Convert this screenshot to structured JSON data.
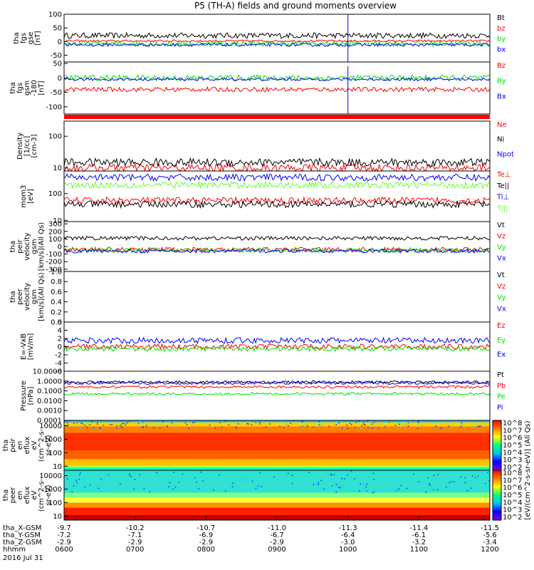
{
  "title": "P5 (TH-A) fields and ground moments overview",
  "colors": {
    "black": "#000000",
    "red": "#ff0000",
    "green": "#00e000",
    "blue": "#0000ff",
    "lightgreen": "#66ff33"
  },
  "panels": [
    {
      "id": "fgs-gse",
      "ylabel": [
        "tha",
        "fgs",
        "gse",
        "[nT]"
      ],
      "ticks": [
        "100",
        "50",
        "0",
        "-50"
      ],
      "tickvals": [
        100,
        50,
        0,
        -50
      ],
      "ylim": [
        -75,
        100
      ],
      "series": [
        {
          "name": "Bt",
          "color": "#000000",
          "base": 22,
          "amp": 10
        },
        {
          "name": "bz",
          "color": "#ff0000",
          "base": 2,
          "amp": 4
        },
        {
          "name": "by",
          "color": "#00e000",
          "base": -8,
          "amp": 10
        },
        {
          "name": "bx",
          "color": "#0000ff",
          "base": -12,
          "amp": 6
        }
      ],
      "spike": {
        "x": 10.9,
        "values": [
          100,
          -75
        ]
      }
    },
    {
      "id": "fgs-gsm",
      "ylabel": [
        "tha",
        "fgs",
        "gsm",
        "-180",
        "[nT]"
      ],
      "ticks": [
        "50",
        "0",
        "-50",
        "-100"
      ],
      "tickvals": [
        50,
        0,
        -50,
        -100
      ],
      "ylim": [
        -125,
        55
      ],
      "series": [
        {
          "name": "Bz",
          "color": "#ff0000",
          "base": -40,
          "amp": 8
        },
        {
          "name": "By",
          "color": "#00e000",
          "base": 0,
          "amp": 10
        },
        {
          "name": "Bx",
          "color": "#0000ff",
          "base": -5,
          "amp": 5
        }
      ],
      "spike": {
        "x": 10.9,
        "values": [
          40,
          -125
        ]
      }
    },
    {
      "id": "density",
      "ylabel": [
        "Density",
        "[1/cc]",
        "[cm-3]"
      ],
      "ticks": [
        "100",
        "10"
      ],
      "tickvals": [
        100,
        10
      ],
      "ylim": [
        8,
        300
      ],
      "log": true,
      "series": [
        {
          "name": "Ne",
          "color": "#ff0000",
          "base": 10,
          "amp": 1
        },
        {
          "name": "Ni",
          "color": "#000000",
          "base": 15,
          "amp": 4
        },
        {
          "name": "Npot",
          "color": "#0000ff",
          "base": 300,
          "amp": 0
        }
      ]
    },
    {
      "id": "temps",
      "ylabel": [
        "mom3",
        "[eV]"
      ],
      "ticks": [
        "100",
        "10"
      ],
      "tickvals": [
        100,
        10
      ],
      "ylim": [
        9,
        700
      ],
      "log": true,
      "series": [
        {
          "name": "Te⊥",
          "color": "#ff0000",
          "base": 55,
          "amp": 6
        },
        {
          "name": "Te||",
          "color": "#000000",
          "base": 40,
          "amp": 5
        },
        {
          "name": "Ti⊥",
          "color": "#0000ff",
          "base": 400,
          "amp": 60
        },
        {
          "name": "Ti||",
          "color": "#66ff33",
          "base": 210,
          "amp": 50
        }
      ]
    },
    {
      "id": "peir-vel",
      "ylabel": [
        "tha",
        "peir",
        "velocity",
        "gsm",
        "[km/s](All Qs)"
      ],
      "ticks": [
        "300",
        "200",
        "100",
        "0",
        "-100",
        "-200",
        "-300"
      ],
      "tickvals": [
        300,
        200,
        100,
        0,
        -100,
        -200,
        -300
      ],
      "ylim": [
        -330,
        330
      ],
      "series": [
        {
          "name": "Vt",
          "color": "#000000",
          "base": 110,
          "amp": 25
        },
        {
          "name": "Vz",
          "color": "#ff0000",
          "base": -40,
          "amp": 30
        },
        {
          "name": "Vy",
          "color": "#00e000",
          "base": -50,
          "amp": 30
        },
        {
          "name": "Vx",
          "color": "#0000ff",
          "base": -60,
          "amp": 25
        }
      ]
    },
    {
      "id": "peer-vel",
      "ylabel": [
        "tha",
        "peer",
        "velocity",
        "gsm",
        "[km/s](All Qs)"
      ],
      "ticks": [
        "1.0",
        "0.8",
        "0.6",
        "0.4",
        "0.2",
        "0.0"
      ],
      "tickvals": [
        1.0,
        0.8,
        0.6,
        0.4,
        0.2,
        0.0
      ],
      "ylim": [
        0,
        1
      ],
      "series": [
        {
          "name": "Vt",
          "color": "#000000"
        },
        {
          "name": "Vz",
          "color": "#ff0000"
        },
        {
          "name": "Vy",
          "color": "#00e000"
        },
        {
          "name": "Vx",
          "color": "#0000ff"
        }
      ]
    },
    {
      "id": "efield",
      "ylabel": [
        "E=-VxB",
        "[mV/m]"
      ],
      "ticks": [
        "6",
        "4",
        "2",
        "0",
        "-2",
        "-4",
        "-6"
      ],
      "tickvals": [
        6,
        4,
        2,
        0,
        -2,
        -4,
        -6
      ],
      "ylim": [
        -6,
        6
      ],
      "series": [
        {
          "name": "Ez",
          "color": "#ff0000",
          "base": 0,
          "amp": 0.6
        },
        {
          "name": "Ey",
          "color": "#00e000",
          "base": -0.5,
          "amp": 0.6
        },
        {
          "name": "Ex",
          "color": "#0000ff",
          "base": 1.5,
          "amp": 0.7
        }
      ]
    },
    {
      "id": "pressure",
      "ylabel": [
        "Pressure",
        "[nPa]"
      ],
      "ticks": [
        "10.0000",
        "1.0000",
        "0.1000",
        "0.0100",
        "0.0010",
        "0.0001"
      ],
      "tickvals": [
        10,
        1,
        0.1,
        0.01,
        0.001,
        0.0001
      ],
      "ylim": [
        0.0001,
        10
      ],
      "log": true,
      "series": [
        {
          "name": "Pt",
          "color": "#000000",
          "base": 0.8,
          "amp": 0.1
        },
        {
          "name": "Pb",
          "color": "#ff0000",
          "base": 0.25,
          "amp": 0.08
        },
        {
          "name": "Pe",
          "color": "#00e000",
          "base": 0.05,
          "amp": 0.01
        },
        {
          "name": "Pi",
          "color": "#0000ff",
          "base": 0.6,
          "amp": 0.1
        }
      ]
    },
    {
      "id": "peir-eflux",
      "ylabel": [
        "tha",
        "peir",
        "en",
        "eflux",
        "eV",
        "(cm^2-s-",
        "sr-eV)"
      ],
      "ticks": [
        "10000",
        "1000",
        "100",
        "10"
      ],
      "tickvals": [
        10000,
        1000,
        100,
        10
      ],
      "ylim": [
        5,
        25000
      ],
      "log": true,
      "type": "heatmap"
    },
    {
      "id": "peer-eflux",
      "ylabel": [
        "tha",
        "peer",
        "en",
        "eflux",
        "eV",
        "(cm^2-s-",
        "sr-eV)"
      ],
      "ticks": [
        "10000",
        "1000",
        "100",
        "10"
      ],
      "tickvals": [
        10000,
        1000,
        100,
        10
      ],
      "ylim": [
        5,
        25000
      ],
      "log": true,
      "type": "heatmap"
    }
  ],
  "colorbar": {
    "label": "[eV/(cm^2-s-sr-eV)] (All Qs)",
    "top_ticks": [
      "10^8",
      "10^7",
      "10^6",
      "10^5",
      "10^4",
      "10^3",
      "10^2"
    ],
    "bottom_ticks": [
      "10^8",
      "10^7",
      "10^6",
      "10^5",
      "10^4",
      "10^3",
      "10^2"
    ]
  },
  "chart_data": {
    "type": "line",
    "title": "P5 (TH-A) fields and ground moments overview",
    "xlabel": "",
    "x_ticks_hhmm": [
      "0600",
      "0700",
      "0800",
      "0900",
      "1000",
      "1100",
      "1200"
    ],
    "x_rows": [
      {
        "label": "tha_X-GSM",
        "values": [
          "-9.7",
          "-10.2",
          "-10.7",
          "-11.0",
          "-11.3",
          "-11.4",
          "-11.5"
        ]
      },
      {
        "label": "tha_Y-GSM",
        "values": [
          "-7.2",
          "-7.1",
          "-6.9",
          "-6.7",
          "-6.4",
          "-6.1",
          "-5.6"
        ]
      },
      {
        "label": "tha_Z-GSM",
        "values": [
          "-2.9",
          "-2.9",
          "-2.9",
          "-2.9",
          "-3.0",
          "-3.2",
          "-3.4"
        ]
      },
      {
        "label": "hhmm",
        "values": [
          "0600",
          "0700",
          "0800",
          "0900",
          "1000",
          "1100",
          "1200"
        ]
      }
    ],
    "date": "2016 Jul 31",
    "xlim_hours": [
      6,
      12
    ]
  }
}
